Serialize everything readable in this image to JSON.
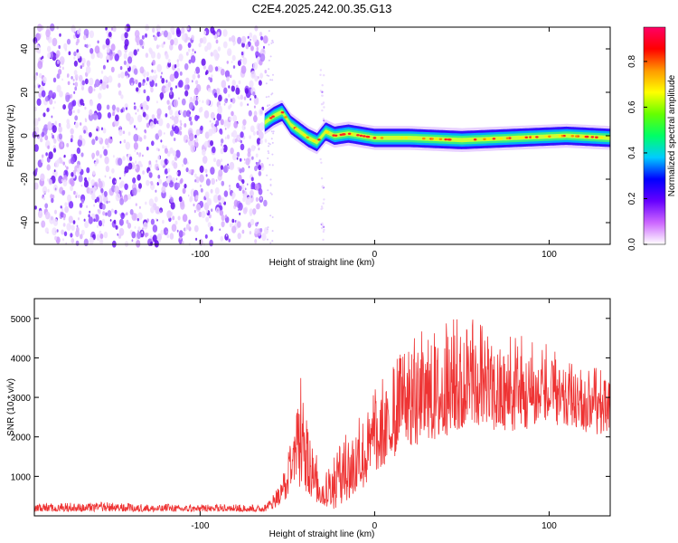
{
  "page": {
    "title": "C2E4.2025.242.00.35.G13"
  },
  "chart_data": [
    {
      "type": "heatmap",
      "xlabel": "Height of straight line (km)",
      "ylabel": "Frequency (Hz)",
      "xlim": [
        -195,
        135
      ],
      "ylim": [
        -50,
        50
      ],
      "x_ticks": [
        "-100",
        "0",
        "100"
      ],
      "y_ticks": [
        "-40",
        "-20",
        "0",
        "20",
        "40"
      ],
      "colorbar": {
        "label": "Normalized spectral amplitude",
        "range": [
          0.0,
          0.95
        ],
        "ticks": [
          "0.0",
          "0.2",
          "0.4",
          "0.6",
          "0.8"
        ],
        "colors": [
          "#ffffff",
          "#cc66ff",
          "#6600ff",
          "#0000ff",
          "#00ccff",
          "#00ff66",
          "#66ff00",
          "#ffff00",
          "#ff9900",
          "#ff0000",
          "#ff0066"
        ]
      },
      "ridge": {
        "description_x": [
          -63,
          -58,
          -53,
          -48,
          -43,
          -38,
          -33,
          -28,
          -23,
          -15,
          0,
          20,
          50,
          80,
          110,
          135
        ],
        "frequency": [
          6,
          9,
          11,
          5,
          2,
          -1,
          -3,
          2,
          0,
          1,
          -1,
          -1,
          -2,
          -1,
          0,
          -1
        ]
      },
      "noise_region_x": [
        -195,
        -62
      ]
    },
    {
      "type": "line",
      "xlabel": "Height of straight line (km)",
      "ylabel": "SNR (10 * v/v)",
      "xlim": [
        -195,
        135
      ],
      "ylim": [
        0,
        5500
      ],
      "x_ticks": [
        "-100",
        "0",
        "100"
      ],
      "y_ticks": [
        "1000",
        "2000",
        "3000",
        "4000",
        "5000"
      ],
      "color": "#ee3333",
      "envelope": {
        "x": [
          -195,
          -160,
          -120,
          -80,
          -62,
          -55,
          -50,
          -45,
          -42,
          -38,
          -33,
          -28,
          -22,
          -15,
          -5,
          5,
          15,
          30,
          50,
          65,
          80,
          95,
          110,
          125,
          135
        ],
        "low": [
          100,
          100,
          100,
          100,
          100,
          200,
          400,
          900,
          500,
          400,
          300,
          200,
          100,
          300,
          700,
          1200,
          1500,
          1800,
          2000,
          2100,
          2000,
          2200,
          2200,
          2000,
          2000
        ],
        "high": [
          300,
          350,
          300,
          300,
          300,
          800,
          1500,
          2500,
          3700,
          2200,
          1500,
          1100,
          1800,
          2500,
          3000,
          3500,
          4200,
          4800,
          5200,
          4800,
          4600,
          4500,
          3900,
          3800,
          3700
        ]
      }
    }
  ]
}
